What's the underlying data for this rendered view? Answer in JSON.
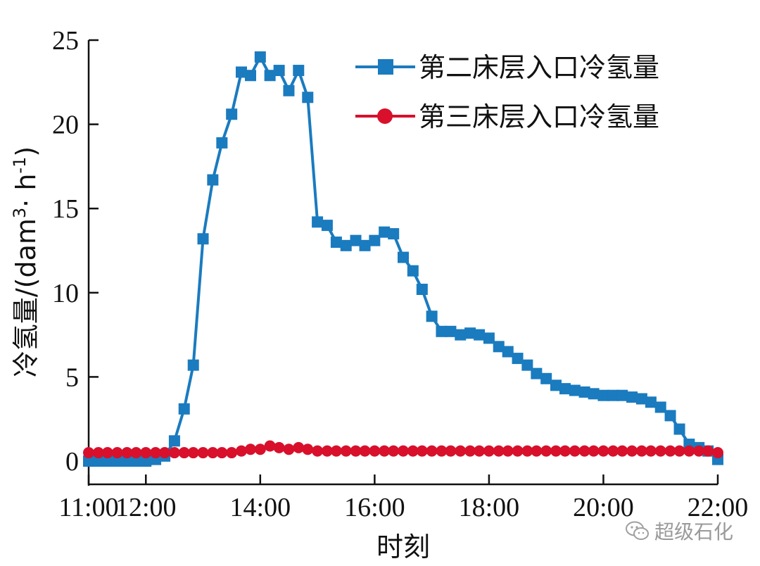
{
  "chart_data": {
    "type": "line",
    "xlabel": "时刻",
    "ylabel_main": "冷氢量/(dam",
    "ylabel_sup1": "3",
    "ylabel_mid": "· h",
    "ylabel_sup2": "-1",
    "ylabel_end": ")",
    "xlim": [
      11,
      22
    ],
    "ylim": [
      0,
      25
    ],
    "x_ticks": [
      11,
      12,
      14,
      16,
      18,
      20,
      22
    ],
    "x_tick_labels": [
      "11:00",
      "12:00",
      "14:00",
      "16:00",
      "18:00",
      "20:00",
      "22:00"
    ],
    "y_ticks": [
      0,
      5,
      10,
      15,
      20,
      25
    ],
    "y_tick_labels": [
      "0",
      "5",
      "10",
      "15",
      "20",
      "25"
    ],
    "grid": false,
    "legend_position": "top-right",
    "series": [
      {
        "name": "第二床层入口冷氢量",
        "color": "#1a7bbf",
        "marker": "square",
        "x": [
          11.0,
          11.17,
          11.33,
          11.5,
          11.67,
          11.83,
          12.0,
          12.17,
          12.33,
          12.5,
          12.67,
          12.83,
          13.0,
          13.17,
          13.33,
          13.5,
          13.67,
          13.83,
          14.0,
          14.17,
          14.33,
          14.5,
          14.67,
          14.83,
          15.0,
          15.17,
          15.33,
          15.5,
          15.67,
          15.83,
          16.0,
          16.17,
          16.33,
          16.5,
          16.67,
          16.83,
          17.0,
          17.17,
          17.33,
          17.5,
          17.67,
          17.83,
          18.0,
          18.17,
          18.33,
          18.5,
          18.67,
          18.83,
          19.0,
          19.17,
          19.33,
          19.5,
          19.67,
          19.83,
          20.0,
          20.17,
          20.33,
          20.5,
          20.67,
          20.83,
          21.0,
          21.17,
          21.33,
          21.5,
          21.67,
          21.83,
          22.0
        ],
        "values": [
          0.0,
          0.0,
          0.0,
          0.0,
          0.0,
          0.0,
          0.0,
          0.1,
          0.3,
          1.2,
          3.1,
          5.7,
          13.2,
          16.7,
          18.9,
          20.6,
          23.1,
          22.9,
          24.0,
          22.9,
          23.2,
          22.0,
          23.2,
          21.6,
          14.2,
          14.0,
          13.0,
          12.8,
          13.1,
          12.8,
          13.1,
          13.6,
          13.5,
          12.1,
          11.3,
          10.2,
          8.6,
          7.7,
          7.7,
          7.5,
          7.6,
          7.5,
          7.3,
          6.8,
          6.5,
          6.1,
          5.7,
          5.2,
          4.9,
          4.5,
          4.3,
          4.2,
          4.1,
          4.0,
          3.9,
          3.9,
          3.9,
          3.8,
          3.7,
          3.5,
          3.2,
          2.7,
          1.9,
          1.0,
          0.8,
          0.6,
          0.1
        ]
      },
      {
        "name": "第三床层入口冷氢量",
        "color": "#d8102c",
        "marker": "circle",
        "x": [
          11.0,
          11.17,
          11.33,
          11.5,
          11.67,
          11.83,
          12.0,
          12.17,
          12.33,
          12.5,
          12.67,
          12.83,
          13.0,
          13.17,
          13.33,
          13.5,
          13.67,
          13.83,
          14.0,
          14.17,
          14.33,
          14.5,
          14.67,
          14.83,
          15.0,
          15.17,
          15.33,
          15.5,
          15.67,
          15.83,
          16.0,
          16.17,
          16.33,
          16.5,
          16.67,
          16.83,
          17.0,
          17.17,
          17.33,
          17.5,
          17.67,
          17.83,
          18.0,
          18.17,
          18.33,
          18.5,
          18.67,
          18.83,
          19.0,
          19.17,
          19.33,
          19.5,
          19.67,
          19.83,
          20.0,
          20.17,
          20.33,
          20.5,
          20.67,
          20.83,
          21.0,
          21.17,
          21.33,
          21.5,
          21.67,
          21.83,
          22.0
        ],
        "values": [
          0.5,
          0.5,
          0.5,
          0.5,
          0.5,
          0.5,
          0.5,
          0.5,
          0.5,
          0.5,
          0.5,
          0.5,
          0.5,
          0.5,
          0.5,
          0.5,
          0.6,
          0.7,
          0.7,
          0.9,
          0.8,
          0.7,
          0.8,
          0.7,
          0.6,
          0.6,
          0.6,
          0.6,
          0.6,
          0.6,
          0.6,
          0.6,
          0.6,
          0.6,
          0.6,
          0.6,
          0.6,
          0.6,
          0.6,
          0.6,
          0.6,
          0.6,
          0.6,
          0.6,
          0.6,
          0.6,
          0.6,
          0.6,
          0.6,
          0.6,
          0.6,
          0.6,
          0.6,
          0.6,
          0.6,
          0.6,
          0.6,
          0.6,
          0.6,
          0.6,
          0.6,
          0.6,
          0.6,
          0.6,
          0.6,
          0.6,
          0.5
        ]
      }
    ]
  },
  "watermark": {
    "text": "超级石化",
    "icon": "wechat-icon"
  }
}
